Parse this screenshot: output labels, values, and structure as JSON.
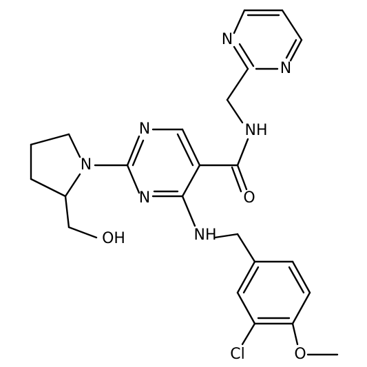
{
  "nodes": [
    {
      "label": "N"
    },
    {
      "label": "N"
    },
    {
      "label": "NH"
    },
    {
      "label": "N"
    },
    {
      "label": "N"
    },
    {
      "label": "O"
    },
    {
      "label": "N"
    },
    {
      "label": "OH"
    },
    {
      "label": "NH"
    },
    {
      "label": "Cl"
    },
    {
      "label": "O"
    }
  ]
}
